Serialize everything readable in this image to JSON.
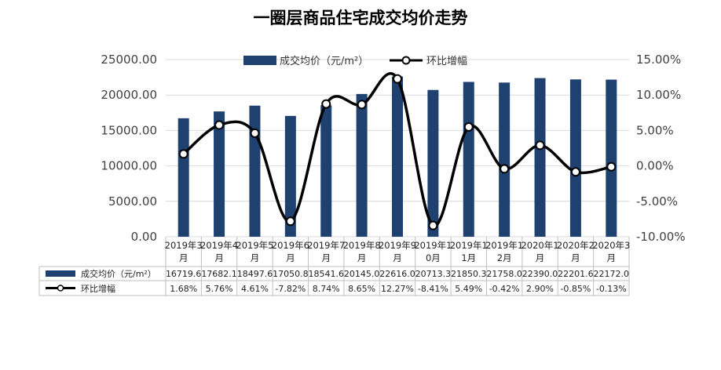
{
  "chart_data": {
    "type": "bar",
    "title": "一圈层商品住宅成交均价走势",
    "categories": [
      [
        "2019年3",
        "月"
      ],
      [
        "2019年4",
        "月"
      ],
      [
        "2019年5",
        "月"
      ],
      [
        "2019年6",
        "月"
      ],
      [
        "2019年7",
        "月"
      ],
      [
        "2019年8",
        "月"
      ],
      [
        "2019年9",
        "月"
      ],
      [
        "2019年1",
        "0月"
      ],
      [
        "2019年1",
        "1月"
      ],
      [
        "2019年1",
        "2月"
      ],
      [
        "2020年1",
        "月"
      ],
      [
        "2020年2",
        "月"
      ],
      [
        "2020年3",
        "月"
      ]
    ],
    "y_left": {
      "ticks": [
        "0.00",
        "5000.00",
        "10000.00",
        "15000.00",
        "20000.00",
        "25000.00"
      ],
      "min": 0,
      "max": 25000
    },
    "y_right": {
      "ticks": [
        "-10.00%",
        "-5.00%",
        "0.00%",
        "5.00%",
        "10.00%",
        "15.00%"
      ],
      "min": -10,
      "max": 15
    },
    "series": [
      {
        "name": "成交均价（元/m²）",
        "type": "bar",
        "color": "#1f4170",
        "values": [
          16719.6,
          17682.1,
          18497.6,
          17050.8,
          18541.6,
          20145.0,
          22616.0,
          20713.3,
          21850.3,
          21758.0,
          22390.0,
          22201.6,
          22172.0
        ],
        "table_labels": [
          "16719.6",
          "17682.1",
          "18497.6",
          "17050.8",
          "18541.6",
          "20145.0",
          "22616.0",
          "20713.3",
          "21850.3",
          "21758.0",
          "22390.0",
          "22201.6",
          "22172.0"
        ]
      },
      {
        "name": "环比增幅",
        "type": "line",
        "color": "#000000",
        "values": [
          1.68,
          5.76,
          4.61,
          -7.82,
          8.74,
          8.65,
          12.27,
          -8.41,
          5.49,
          -0.42,
          2.9,
          -0.85,
          -0.13
        ],
        "table_labels": [
          "1.68%",
          "5.76%",
          "4.61%",
          "-7.82%",
          "8.74%",
          "8.65%",
          "12.27%",
          "-8.41%",
          "5.49%",
          "-0.42%",
          "2.90%",
          "-0.85%",
          "-0.13%"
        ]
      }
    ],
    "legend_position": "top",
    "grid": true
  }
}
